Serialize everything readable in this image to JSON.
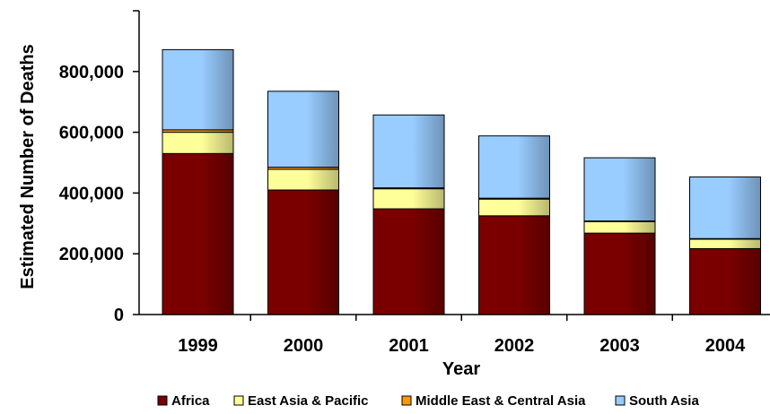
{
  "chart_data": {
    "type": "bar",
    "stacked": true,
    "title": "",
    "xlabel": "Year",
    "ylabel": "Estimated Number of Deaths",
    "categories": [
      "1999",
      "2000",
      "2001",
      "2002",
      "2003",
      "2004"
    ],
    "ylim": [
      0,
      1000000
    ],
    "yticks": [
      0,
      200000,
      400000,
      600000,
      800000
    ],
    "ytick_labels": [
      "0",
      "200,000",
      "400,000",
      "600,000",
      "800,000"
    ],
    "grid": false,
    "legend_position": "bottom",
    "series": [
      {
        "name": "Africa",
        "color": "#7a0000",
        "values": [
          530000,
          410000,
          348000,
          325000,
          268000,
          217000
        ]
      },
      {
        "name": "East Asia & Pacific",
        "color": "#ffff99",
        "values": [
          70000,
          68000,
          66000,
          55000,
          38000,
          31000
        ]
      },
      {
        "name": "Middle East & Central Asia",
        "color": "#ff9900",
        "values": [
          8000,
          7000,
          3000,
          3000,
          2000,
          2000
        ]
      },
      {
        "name": "South Asia",
        "color": "#99ccff",
        "values": [
          264000,
          250000,
          240000,
          205000,
          208000,
          203000
        ]
      }
    ]
  }
}
